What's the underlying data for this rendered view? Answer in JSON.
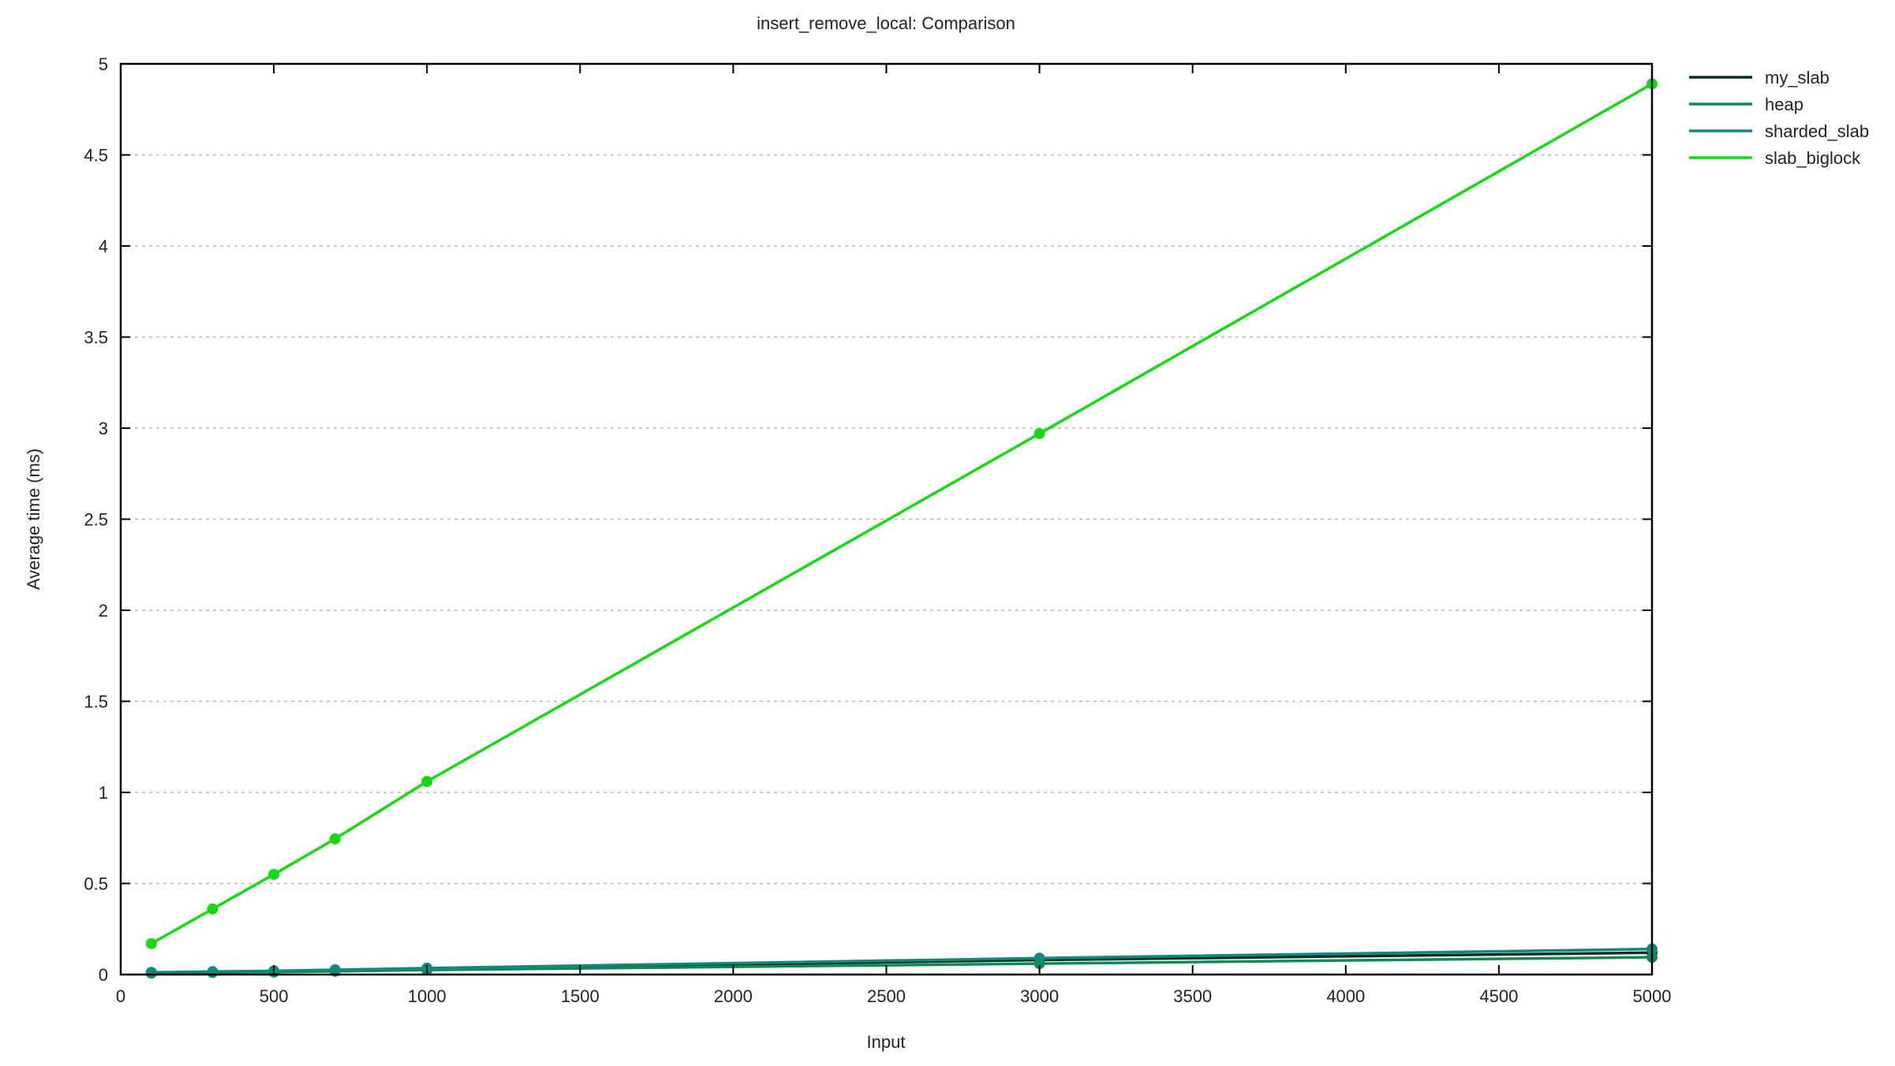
{
  "chart_data": {
    "type": "line",
    "title": "insert_remove_local: Comparison",
    "xlabel": "Input",
    "ylabel": "Average time (ms)",
    "xlim": [
      0,
      5000
    ],
    "ylim": [
      0,
      5
    ],
    "xticks": [
      "0",
      "500",
      "1000",
      "1500",
      "2000",
      "2500",
      "3000",
      "3500",
      "4000",
      "4500",
      "5000"
    ],
    "yticks": [
      "0",
      "0.5",
      "1",
      "1.5",
      "2",
      "2.5",
      "3",
      "3.5",
      "4",
      "4.5",
      "5"
    ],
    "grid": "horizontal dashed",
    "legend_position": "top-right, outside plot",
    "x": [
      100,
      300,
      500,
      700,
      1000,
      3000,
      5000
    ],
    "series": [
      {
        "name": "my_slab",
        "color": "#0b2e1f",
        "values": [
          0.01,
          0.013,
          0.017,
          0.022,
          0.03,
          0.08,
          0.12
        ]
      },
      {
        "name": "heap",
        "color": "#0f8a55",
        "values": [
          0.008,
          0.011,
          0.014,
          0.018,
          0.025,
          0.06,
          0.095
        ]
      },
      {
        "name": "sharded_slab",
        "color": "#0f8a80",
        "values": [
          0.012,
          0.016,
          0.02,
          0.026,
          0.035,
          0.09,
          0.14
        ]
      },
      {
        "name": "slab_biglock",
        "color": "#16d916",
        "values": [
          0.17,
          0.36,
          0.55,
          0.745,
          1.06,
          2.97,
          4.89
        ]
      }
    ]
  }
}
